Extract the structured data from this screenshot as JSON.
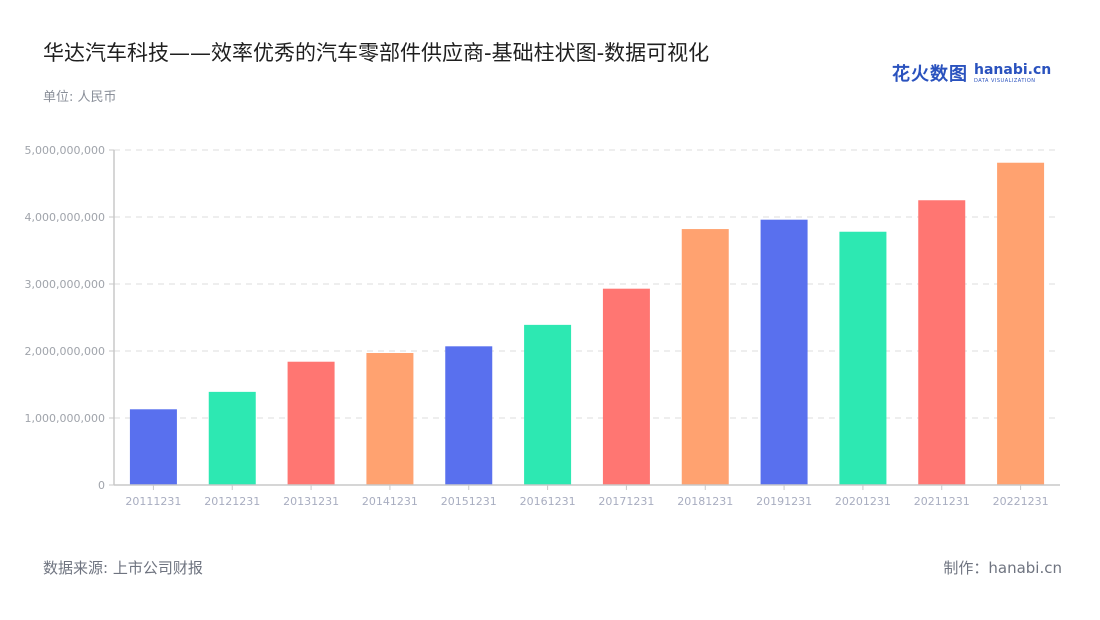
{
  "header": {
    "title": "华达汽车科技——效率优秀的汽车零部件供应商-基础柱状图-数据可视化",
    "unit": "单位: 人民币"
  },
  "logo": {
    "cn": "花火数图",
    "en": "hanabi.cn",
    "sub": "DATA VISUALIZATION"
  },
  "footer": {
    "source": "数据来源: 上市公司财报",
    "maker": "制作：hanabi.cn"
  },
  "colors": {
    "blue": "#5970ee",
    "green": "#2de8b2",
    "red": "#ff7672",
    "orange": "#ffa270",
    "grid": "#e3e3e3",
    "axis": "#c8c8c8"
  },
  "chart_data": {
    "type": "bar",
    "title": "华达汽车科技——效率优秀的汽车零部件供应商-基础柱状图-数据可视化",
    "xlabel": "",
    "ylabel": "单位: 人民币",
    "categories": [
      "20111231",
      "20121231",
      "20131231",
      "20141231",
      "20151231",
      "20161231",
      "20171231",
      "20181231",
      "20191231",
      "20201231",
      "20211231",
      "20221231"
    ],
    "values": [
      1130000000,
      1390000000,
      1840000000,
      1970000000,
      2070000000,
      2390000000,
      2930000000,
      3820000000,
      3960000000,
      3780000000,
      4250000000,
      4810000000
    ],
    "bar_colors": [
      "#5970ee",
      "#2de8b2",
      "#ff7672",
      "#ffa270",
      "#5970ee",
      "#2de8b2",
      "#ff7672",
      "#ffa270",
      "#5970ee",
      "#2de8b2",
      "#ff7672",
      "#ffa270"
    ],
    "yticks": [
      "0",
      "1,000,000,000",
      "2,000,000,000",
      "3,000,000,000",
      "4,000,000,000",
      "5,000,000,000"
    ],
    "ylim": [
      0,
      5000000000
    ],
    "grid": true,
    "legend": "none"
  }
}
